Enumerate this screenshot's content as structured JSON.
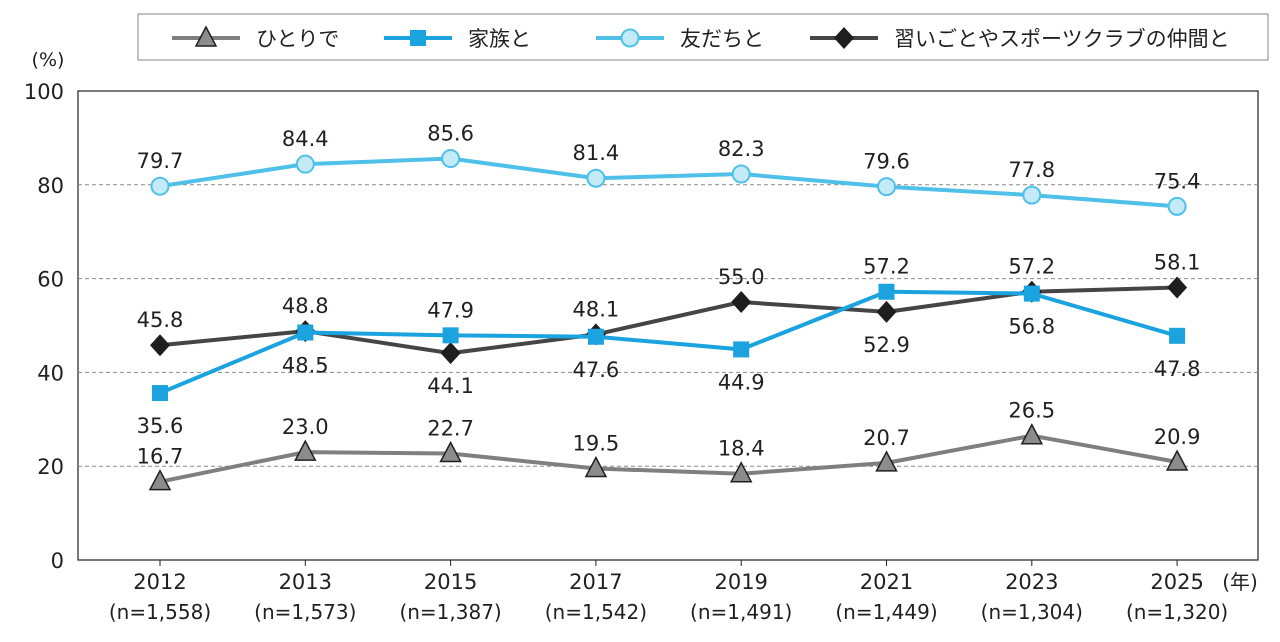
{
  "chart_data": {
    "type": "line",
    "y_unit_label": "(%)",
    "x_unit_label": "(年)",
    "ylim": [
      0,
      100
    ],
    "yticks": [
      0,
      20,
      40,
      60,
      80,
      100
    ],
    "grid": "horizontal dashed",
    "legend_position": "top",
    "categories": [
      "2012",
      "2013",
      "2015",
      "2017",
      "2019",
      "2021",
      "2023",
      "2025"
    ],
    "sample_sizes": [
      "(n=1,558)",
      "(n=1,573)",
      "(n=1,387)",
      "(n=1,542)",
      "(n=1,491)",
      "(n=1,449)",
      "(n=1,304)",
      "(n=1,320)"
    ],
    "series": [
      {
        "name": "ひとりで",
        "marker": "triangle",
        "color": "#7f7f7f",
        "marker_fill": "#8c8c8c",
        "values": [
          16.7,
          23.0,
          22.7,
          19.5,
          18.4,
          20.7,
          26.5,
          20.9
        ]
      },
      {
        "name": "家族と",
        "marker": "square",
        "color": "#1aa3de",
        "marker_fill": "#1aa3de",
        "values": [
          35.6,
          48.5,
          47.9,
          47.6,
          44.9,
          57.2,
          56.8,
          47.8
        ]
      },
      {
        "name": "友だちと",
        "marker": "circle",
        "color": "#4fc1e9",
        "marker_fill": "#c4e9f7",
        "values": [
          79.7,
          84.4,
          85.6,
          81.4,
          82.3,
          79.6,
          77.8,
          75.4
        ]
      },
      {
        "name": "習いごとやスポーツクラブの仲間と",
        "marker": "diamond",
        "color": "#454545",
        "marker_fill": "#1e1e1e",
        "values": [
          45.8,
          48.8,
          44.1,
          48.1,
          55.0,
          52.9,
          57.2,
          58.1
        ]
      }
    ]
  }
}
